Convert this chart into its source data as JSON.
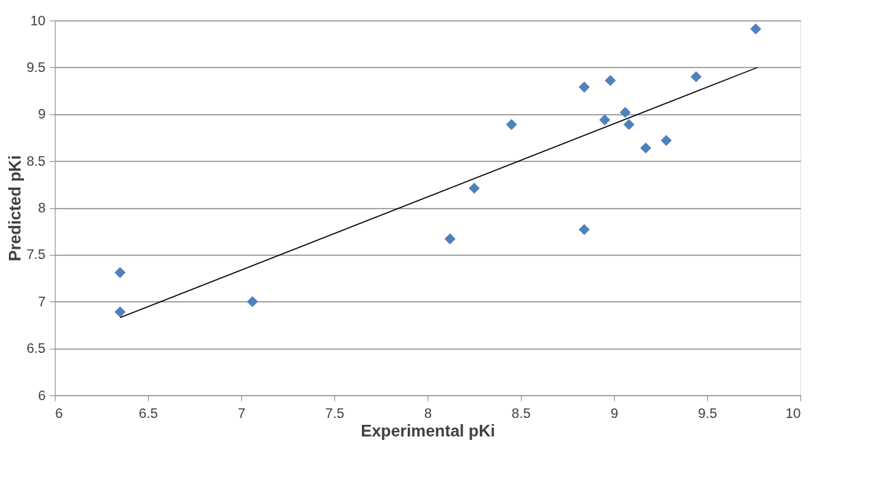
{
  "chart_data": {
    "type": "scatter",
    "xlabel": "Experimental pKi",
    "ylabel": "Predicted pKi",
    "xlim": [
      6,
      10
    ],
    "ylim": [
      6,
      10
    ],
    "xticks": [
      6,
      6.5,
      7,
      7.5,
      8,
      8.5,
      9,
      9.5,
      10
    ],
    "yticks": [
      6,
      6.5,
      7,
      7.5,
      8,
      8.5,
      9,
      9.5,
      10
    ],
    "grid": "y",
    "legend": false,
    "marker": "diamond",
    "series": [
      {
        "type": "scatter",
        "color": "#4f81bd",
        "x": [
          6.35,
          6.35,
          7.06,
          8.12,
          8.25,
          8.45,
          8.84,
          8.84,
          8.98,
          8.95,
          9.06,
          9.08,
          9.17,
          9.28,
          9.44,
          9.76
        ],
        "values": [
          6.89,
          7.31,
          7.0,
          7.67,
          8.21,
          8.89,
          9.29,
          7.77,
          9.36,
          8.94,
          9.02,
          8.89,
          8.64,
          8.72,
          9.4,
          9.91
        ]
      },
      {
        "type": "line",
        "color": "#000000",
        "line_style": "solid",
        "marker": "none",
        "x": [
          6.35,
          9.77
        ],
        "values": [
          6.83,
          9.5
        ]
      }
    ]
  }
}
